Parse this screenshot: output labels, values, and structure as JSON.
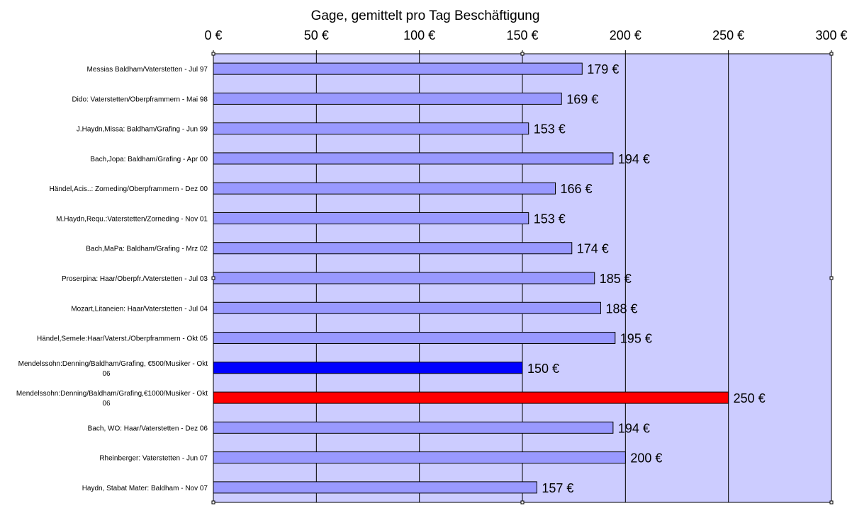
{
  "chart_data": {
    "type": "bar",
    "orientation": "horizontal",
    "title": "Gage, gemittelt pro Tag Beschäftigung",
    "xlim": [
      0,
      300
    ],
    "xticks": [
      0,
      50,
      100,
      150,
      200,
      250,
      300
    ],
    "xtick_labels": [
      "0 €",
      "50 €",
      "100 €",
      "150 €",
      "200 €",
      "250 €",
      "300 €"
    ],
    "axis_position": "top",
    "grid": true,
    "categories": [
      [
        "Messias Baldham/Vaterstetten - Jul 97"
      ],
      [
        "Dido: Vaterstetten/Oberpframmern - Mai 98"
      ],
      [
        "J.Haydn,Missa: Baldham/Grafing - Jun 99"
      ],
      [
        "Bach,Jopa: Baldham/Grafing - Apr 00"
      ],
      [
        "Händel,Acis..: Zorneding/Oberpframmern - Dez 00"
      ],
      [
        "M.Haydn,Requ.:Vaterstetten/Zorneding - Nov 01"
      ],
      [
        "Bach,MaPa: Baldham/Grafing - Mrz 02"
      ],
      [
        "Proserpina: Haar/Oberpfr./Vaterstetten - Jul 03"
      ],
      [
        "Mozart,Litaneien: Haar/Vaterstetten - Jul 04"
      ],
      [
        "Händel,Semele:Haar/Vaterst./Oberpframmern - Okt 05"
      ],
      [
        "Mendelssohn:Denning/Baldham/Grafing, €500/Musiker - Okt",
        "06"
      ],
      [
        "Mendelssohn:Denning/Baldham/Grafing,€1000/Musiker - Okt",
        "06"
      ],
      [
        "Bach, WO: Haar/Vaterstetten - Dez 06"
      ],
      [
        "Rheinberger: Vaterstetten - Jun 07"
      ],
      [
        "Haydn, Stabat Mater: Baldham - Nov 07"
      ]
    ],
    "values": [
      179,
      169,
      153,
      194,
      166,
      153,
      174,
      185,
      188,
      195,
      150,
      250,
      194,
      200,
      157
    ],
    "data_labels": [
      "179 €",
      "169 €",
      "153 €",
      "194 €",
      "166 €",
      "153 €",
      "174 €",
      "185 €",
      "188 €",
      "195 €",
      "150 €",
      "250 €",
      "194 €",
      "200 €",
      "157 €"
    ],
    "bar_colors": [
      "#9999ff",
      "#9999ff",
      "#9999ff",
      "#9999ff",
      "#9999ff",
      "#9999ff",
      "#9999ff",
      "#9999ff",
      "#9999ff",
      "#9999ff",
      "#0000ff",
      "#ff0000",
      "#9999ff",
      "#9999ff",
      "#9999ff"
    ],
    "plot_background": "#ccccff",
    "gridline_color": "#000000"
  }
}
